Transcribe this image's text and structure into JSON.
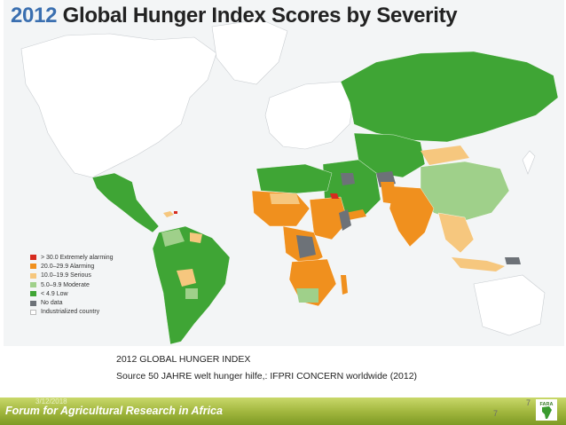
{
  "title": {
    "year": "2012",
    "rest": "Global Hunger Index Scores by Severity"
  },
  "legend": [
    {
      "label": "> 30.0 Extremely alarming",
      "color": "#d62b1f"
    },
    {
      "label": "20.0–29.9 Alarming",
      "color": "#f0901e"
    },
    {
      "label": "10.0–19.9 Serious",
      "color": "#f6c77e"
    },
    {
      "label": "5.0–9.9 Moderate",
      "color": "#9fd08a"
    },
    {
      "label": "< 4.9 Low",
      "color": "#3fa535"
    },
    {
      "label": "No data",
      "color": "#6d7278"
    },
    {
      "label": "Industrialized country",
      "color": "#ffffff"
    }
  ],
  "caption": {
    "line1": "2012 GLOBAL HUNGER INDEX",
    "line2": "Source 50 JAHRE welt hunger hilfe,: IFPRI  CONCERN worldwide (2012)"
  },
  "footer": {
    "org": "Forum for Agricultural Research in Africa",
    "date": "3/12/2018",
    "page_top": "7",
    "page_bottom": "7",
    "logo_text": "FARA"
  },
  "colors": {
    "low": "#3fa535",
    "moderate": "#9fd08a",
    "serious": "#f6c77e",
    "alarming": "#f0901e",
    "extreme": "#d62b1f",
    "nodata": "#6d7278",
    "industrialized": "#ffffff",
    "ocean": "#f3f5f6"
  }
}
